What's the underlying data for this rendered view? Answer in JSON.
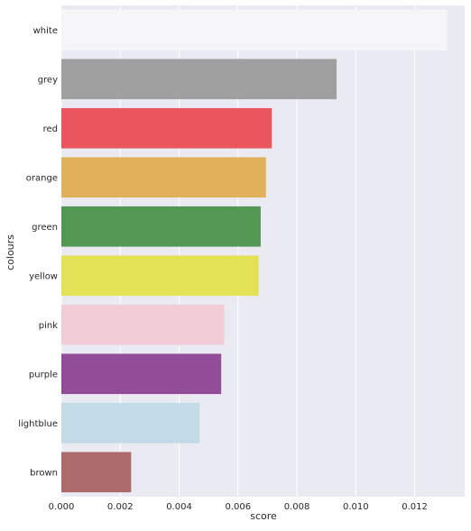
{
  "chart_data": {
    "type": "bar",
    "orientation": "horizontal",
    "categories": [
      "white",
      "grey",
      "red",
      "orange",
      "green",
      "yellow",
      "pink",
      "purple",
      "lightblue",
      "brown"
    ],
    "values": [
      0.0131,
      0.00935,
      0.00715,
      0.00695,
      0.00677,
      0.0067,
      0.00553,
      0.00543,
      0.0047,
      0.00237
    ],
    "colors": [
      "#f6f6f9",
      "#a0a0a0",
      "#e9565e",
      "#e0b05a",
      "#529752",
      "#e3e155",
      "#f1cbd6",
      "#924d99",
      "#c3dbe6",
      "#ac6a6a"
    ],
    "xlabel": "score",
    "ylabel": "colours",
    "xlim": [
      0,
      0.0137
    ],
    "xticks": [
      0.0,
      0.002,
      0.004,
      0.006,
      0.008,
      0.01,
      0.012
    ],
    "xtick_labels": [
      "0.000",
      "0.002",
      "0.004",
      "0.006",
      "0.008",
      "0.010",
      "0.012"
    ],
    "grid": true,
    "background": "#eaeaf2",
    "title": ""
  }
}
